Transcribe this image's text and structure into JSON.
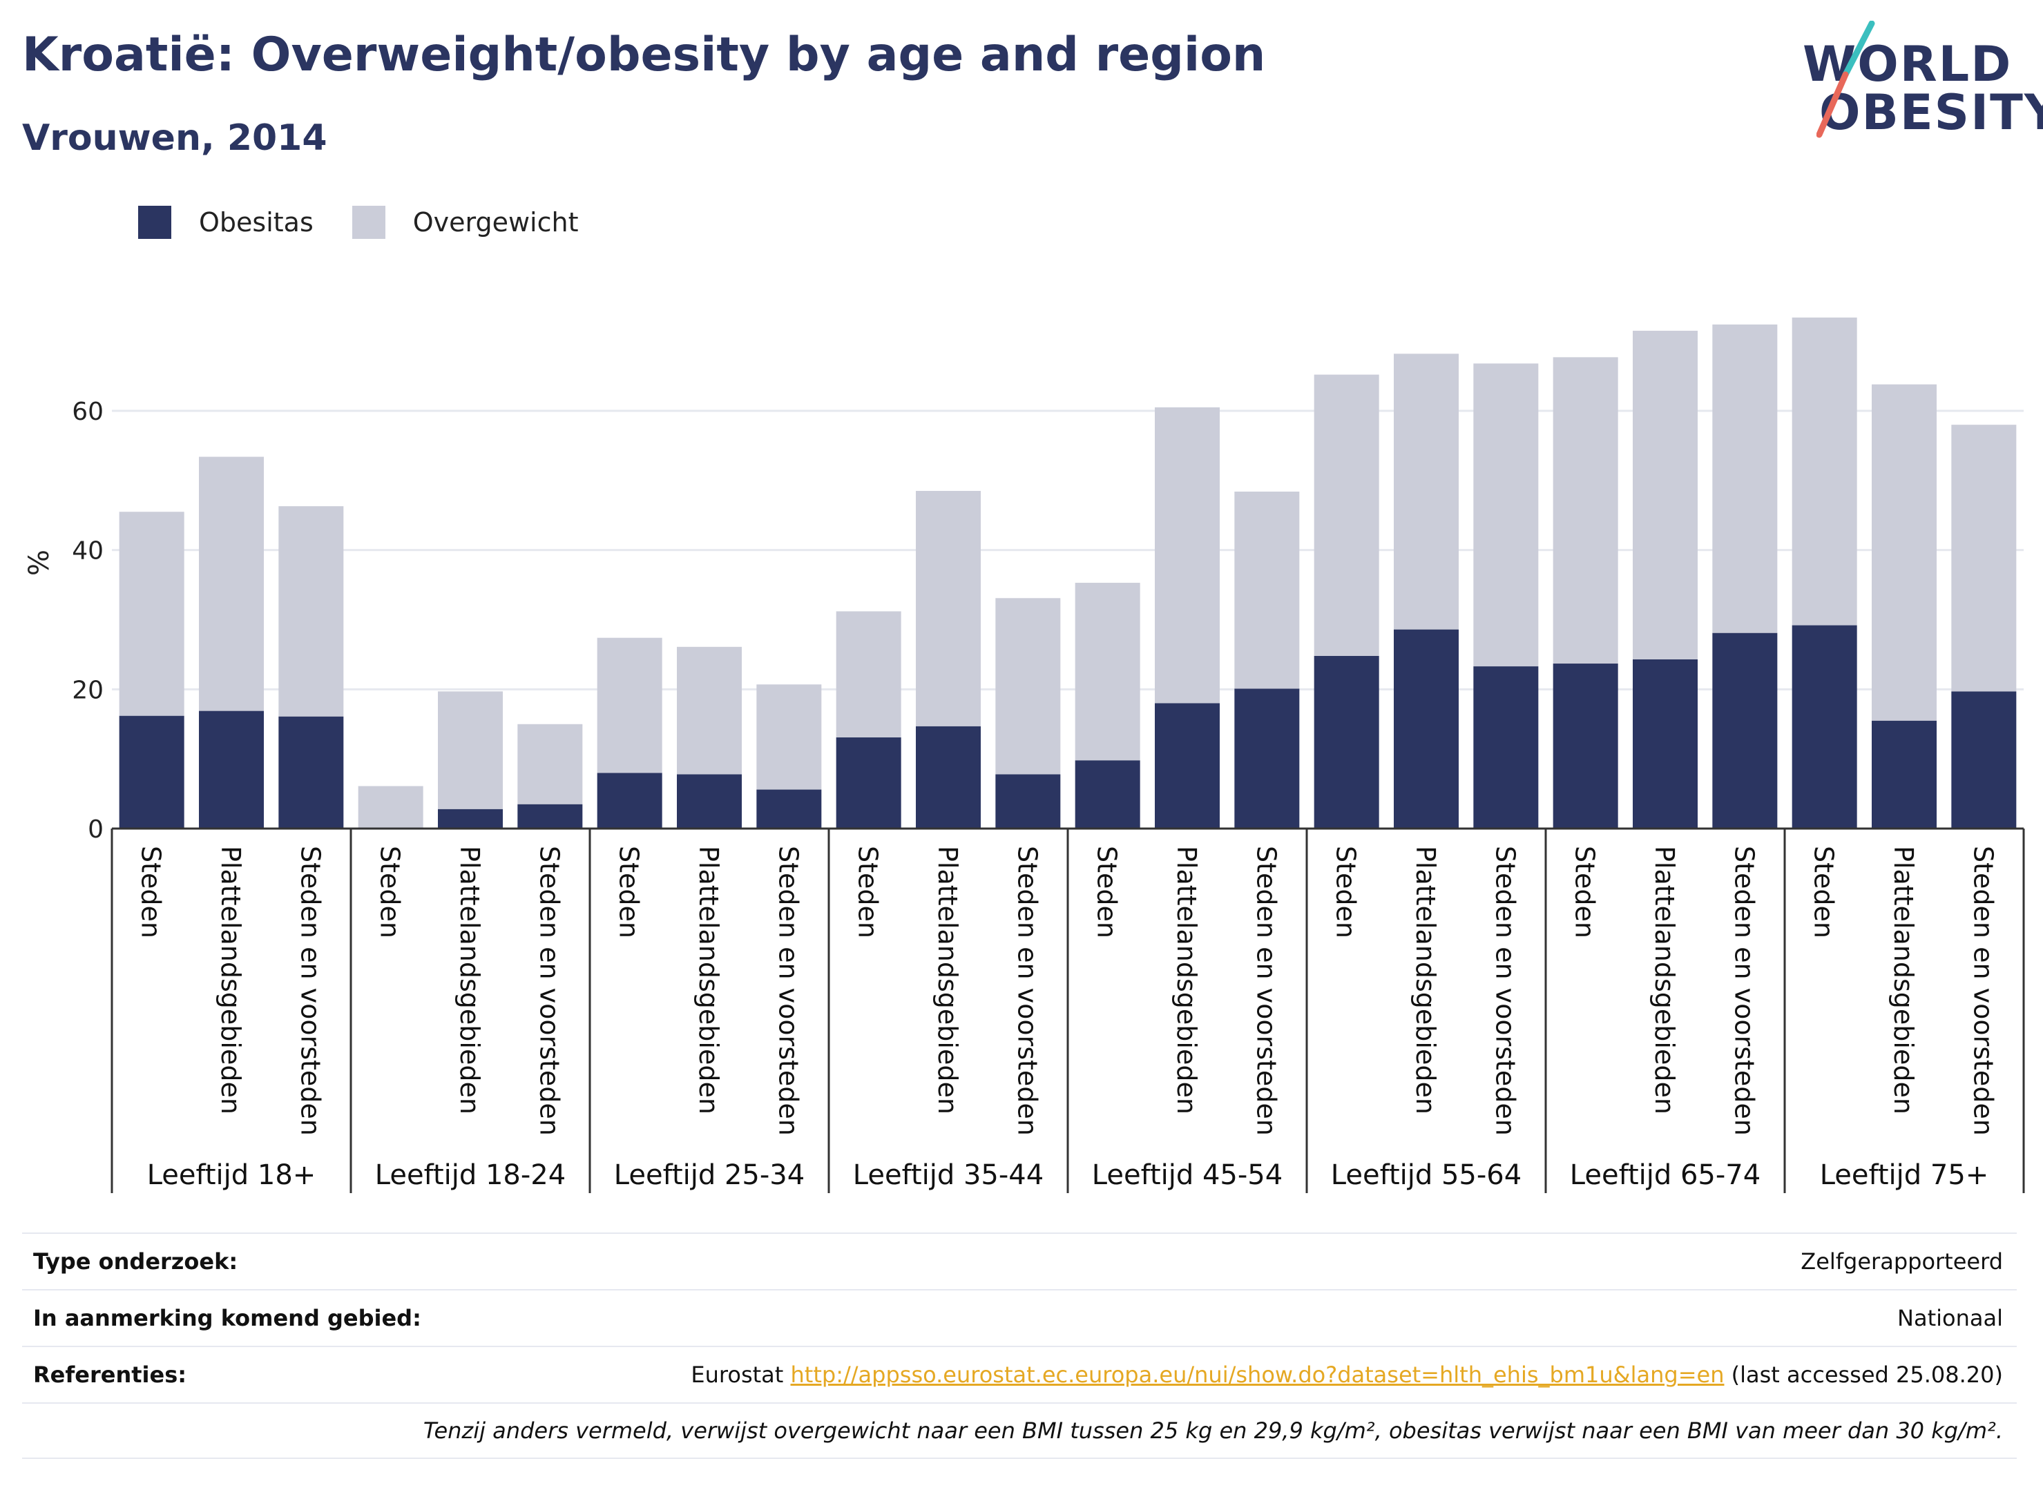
{
  "title": "Kroatië: Overweight/obesity by age and region",
  "subtitle": "Vrouwen, 2014",
  "logo": {
    "line1": "WORLD",
    "line2": "OBESITY",
    "accent_teal": "#3bbfbf",
    "accent_coral": "#e8685a"
  },
  "legend": [
    {
      "label": "Obesitas",
      "color": "#2b3561"
    },
    {
      "label": "Overgewicht",
      "color": "#cbcdd9"
    }
  ],
  "chart_data": {
    "type": "bar",
    "stacked": true,
    "ylabel": "%",
    "ylim": [
      0,
      80
    ],
    "yticks": [
      0,
      20,
      40,
      60
    ],
    "grid": true,
    "legend_position": "top-left",
    "groups": [
      {
        "label": "Leeftijd 18+",
        "categories": [
          "Steden",
          "Plattelandsgebieden",
          "Steden en voorsteden"
        ]
      },
      {
        "label": "Leeftijd 18-24",
        "categories": [
          "Steden",
          "Plattelandsgebieden",
          "Steden en voorsteden"
        ]
      },
      {
        "label": "Leeftijd 25-34",
        "categories": [
          "Steden",
          "Plattelandsgebieden",
          "Steden en voorsteden"
        ]
      },
      {
        "label": "Leeftijd 35-44",
        "categories": [
          "Steden",
          "Plattelandsgebieden",
          "Steden en voorsteden"
        ]
      },
      {
        "label": "Leeftijd 45-54",
        "categories": [
          "Steden",
          "Plattelandsgebieden",
          "Steden en voorsteden"
        ]
      },
      {
        "label": "Leeftijd 55-64",
        "categories": [
          "Steden",
          "Plattelandsgebieden",
          "Steden en voorsteden"
        ]
      },
      {
        "label": "Leeftijd 65-74",
        "categories": [
          "Steden",
          "Plattelandsgebieden",
          "Steden en voorsteden"
        ]
      },
      {
        "label": "Leeftijd 75+",
        "categories": [
          "Steden",
          "Plattelandsgebieden",
          "Steden en voorsteden"
        ]
      }
    ],
    "series": [
      {
        "name": "Obesitas",
        "color": "#2b3561",
        "values": [
          16.2,
          16.9,
          16.1,
          0,
          2.8,
          3.5,
          8.0,
          7.8,
          5.6,
          13.1,
          14.7,
          7.8,
          9.8,
          18.0,
          20.1,
          24.8,
          28.6,
          23.3,
          23.7,
          24.3,
          28.1,
          29.2,
          15.5,
          19.7
        ]
      },
      {
        "name": "Overgewicht",
        "color": "#cbcdd9",
        "values": [
          29.3,
          36.5,
          30.2,
          6.1,
          16.9,
          11.5,
          19.4,
          18.3,
          15.1,
          18.1,
          33.8,
          25.3,
          25.5,
          42.5,
          28.3,
          40.4,
          39.6,
          43.5,
          44.0,
          47.2,
          44.3,
          44.2,
          48.3,
          38.3
        ]
      }
    ]
  },
  "info": {
    "rows": [
      {
        "label": "Type onderzoek:",
        "value": "Zelfgerapporteerd"
      },
      {
        "label": "In aanmerking komend gebied:",
        "value": "Nationaal"
      }
    ],
    "references": {
      "label": "Referenties:",
      "prefix": "Eurostat ",
      "link": "http://appsso.eurostat.ec.europa.eu/nui/show.do?dataset=hlth_ehis_bm1u&lang=en",
      "suffix": " (last accessed 25.08.20)"
    },
    "footnote": "Tenzij anders vermeld, verwijst overgewicht naar een BMI tussen 25 kg en 29,9 kg/m², obesitas verwijst naar een BMI van meer dan 30 kg/m²."
  }
}
